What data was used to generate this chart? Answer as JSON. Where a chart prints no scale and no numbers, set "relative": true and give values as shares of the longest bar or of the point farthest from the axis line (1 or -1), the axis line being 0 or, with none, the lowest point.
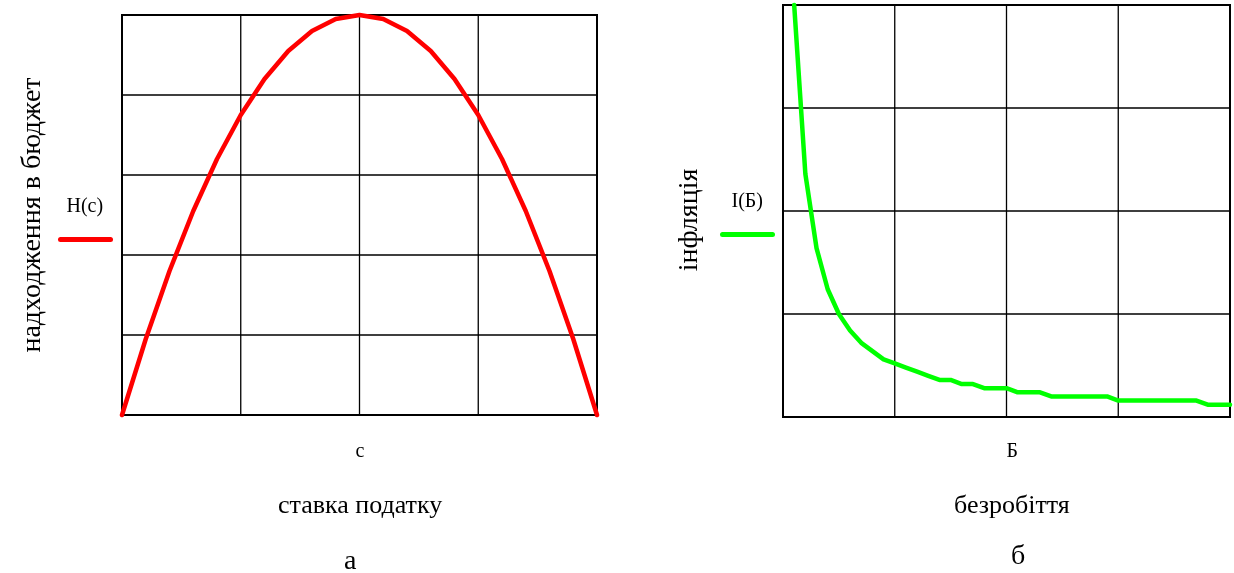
{
  "chart_data": [
    {
      "type": "line",
      "relative": true,
      "ylabel": "надходження в бюджет",
      "xlabel": "c",
      "annotations": [
        "ставка податку",
        "а"
      ],
      "grid": true,
      "legend": "left",
      "marker": "none",
      "line_style": "solid",
      "categories": [
        null,
        null,
        null,
        null,
        null,
        null,
        null,
        null,
        null,
        null,
        null,
        null,
        null,
        null,
        null,
        null,
        null,
        null,
        null,
        null,
        null
      ],
      "series": [
        {
          "name": "H(c)",
          "color": "#ff0000",
          "values": [
            0,
            0.19,
            0.36,
            0.51,
            0.64,
            0.75,
            0.84,
            0.91,
            0.96,
            0.99,
            1,
            0.99,
            0.96,
            0.91,
            0.84,
            0.75,
            0.64,
            0.51,
            0.36,
            0.19,
            0
          ]
        }
      ]
    },
    {
      "type": "line",
      "relative": true,
      "ylabel": "інфляція",
      "xlabel": "Б",
      "annotations": [
        "безробіття",
        "б"
      ],
      "grid": true,
      "legend": "left",
      "marker": "none",
      "line_style": "solid",
      "categories": [
        null,
        null,
        null,
        null,
        null,
        null,
        null,
        null,
        null,
        null,
        null,
        null,
        null,
        null,
        null,
        null,
        null,
        null,
        null,
        null,
        null,
        null,
        null,
        null,
        null,
        null,
        null,
        null,
        null,
        null,
        null,
        null,
        null,
        null,
        null,
        null,
        null,
        null,
        null,
        null,
        null
      ],
      "series": [
        {
          "name": "I(Б)",
          "color": "#00ff00",
          "values": [
            null,
            1,
            0.59,
            0.41,
            0.31,
            0.25,
            0.21,
            0.18,
            0.16,
            0.14,
            0.13,
            0.12,
            0.11,
            0.1,
            0.09,
            0.09,
            0.08,
            0.08,
            0.07,
            0.07,
            0.07,
            0.06,
            0.06,
            0.06,
            0.05,
            0.05,
            0.05,
            0.05,
            0.05,
            0.05,
            0.04,
            0.04,
            0.04,
            0.04,
            0.04,
            0.04,
            0.04,
            0.04,
            0.03,
            0.03,
            0.03
          ]
        }
      ]
    }
  ]
}
